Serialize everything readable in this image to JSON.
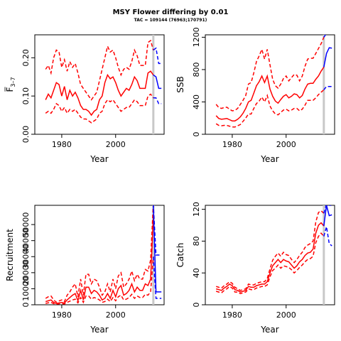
{
  "title": "MSY Flower differing by 0.01",
  "subtitle": "TAC = 109144 (76963;170791)",
  "colors": {
    "historic": "#ff0000",
    "forecast": "#0000ff",
    "divider": "#c8c8c8",
    "axis": "#000000"
  },
  "chart_data": [
    {
      "id": "fbar",
      "type": "line",
      "xlabel": "Year",
      "ylabel": "F̅",
      "ylabel_sub": "3–7",
      "xlim": [
        1970,
        2018
      ],
      "ylim": [
        0,
        0.26
      ],
      "xticks": [
        "1980",
        "2000"
      ],
      "xtick_values": [
        1980,
        2000
      ],
      "yticks": [
        "0.00",
        "0.10",
        "0.20"
      ],
      "ytick_values": [
        0,
        0.1,
        0.2
      ],
      "divider_x": 2014,
      "x": [
        1974,
        1975,
        1976,
        1977,
        1978,
        1979,
        1980,
        1981,
        1982,
        1983,
        1984,
        1985,
        1986,
        1987,
        1988,
        1989,
        1990,
        1991,
        1992,
        1993,
        1994,
        1995,
        1996,
        1997,
        1998,
        1999,
        2000,
        2001,
        2002,
        2003,
        2004,
        2005,
        2006,
        2007,
        2008,
        2009,
        2010,
        2011,
        2012,
        2013,
        2014
      ],
      "series": [
        {
          "role": "estimate",
          "style": "solid",
          "color": "#ff0000",
          "values": [
            0.09,
            0.105,
            0.095,
            0.115,
            0.135,
            0.13,
            0.1,
            0.125,
            0.09,
            0.115,
            0.1,
            0.11,
            0.095,
            0.075,
            0.065,
            0.065,
            0.06,
            0.05,
            0.06,
            0.065,
            0.09,
            0.1,
            0.135,
            0.155,
            0.145,
            0.15,
            0.135,
            0.115,
            0.1,
            0.11,
            0.12,
            0.115,
            0.13,
            0.15,
            0.14,
            0.12,
            0.12,
            0.12,
            0.16,
            0.165,
            0.155
          ]
        },
        {
          "role": "upper",
          "style": "dashed",
          "color": "#ff0000",
          "values": [
            0.17,
            0.18,
            0.16,
            0.2,
            0.22,
            0.215,
            0.175,
            0.195,
            0.165,
            0.19,
            0.175,
            0.185,
            0.16,
            0.13,
            0.12,
            0.11,
            0.1,
            0.09,
            0.1,
            0.11,
            0.14,
            0.17,
            0.2,
            0.23,
            0.215,
            0.22,
            0.2,
            0.175,
            0.155,
            0.17,
            0.175,
            0.17,
            0.19,
            0.22,
            0.205,
            0.18,
            0.18,
            0.18,
            0.24,
            0.245,
            0.22
          ]
        },
        {
          "role": "lower",
          "style": "dashed",
          "color": "#ff0000",
          "values": [
            0.055,
            0.06,
            0.055,
            0.065,
            0.08,
            0.075,
            0.06,
            0.07,
            0.055,
            0.065,
            0.06,
            0.065,
            0.055,
            0.045,
            0.04,
            0.04,
            0.035,
            0.03,
            0.035,
            0.04,
            0.055,
            0.06,
            0.08,
            0.09,
            0.085,
            0.09,
            0.08,
            0.07,
            0.06,
            0.065,
            0.07,
            0.07,
            0.08,
            0.09,
            0.085,
            0.075,
            0.075,
            0.075,
            0.1,
            0.105,
            0.095
          ]
        }
      ],
      "forecast": {
        "x": [
          2014,
          2015,
          2016,
          2017
        ],
        "estimate": [
          0.155,
          0.15,
          0.12,
          0.12
        ],
        "upper": [
          0.22,
          0.225,
          0.185,
          0.185
        ],
        "lower": [
          0.095,
          0.095,
          0.08,
          0.08
        ]
      }
    },
    {
      "id": "ssb",
      "type": "line",
      "xlabel": "Year",
      "ylabel": "SSB",
      "xlim": [
        1970,
        2018
      ],
      "ylim": [
        0,
        1230
      ],
      "xticks": [
        "1980",
        "2000"
      ],
      "xtick_values": [
        1980,
        2000
      ],
      "yticks": [
        "0",
        "400",
        "800",
        "1200"
      ],
      "ytick_values": [
        0,
        400,
        800,
        1200
      ],
      "divider_x": 2014,
      "x": [
        1974,
        1975,
        1976,
        1977,
        1978,
        1979,
        1980,
        1981,
        1982,
        1983,
        1984,
        1985,
        1986,
        1987,
        1988,
        1989,
        1990,
        1991,
        1992,
        1993,
        1994,
        1995,
        1996,
        1997,
        1998,
        1999,
        2000,
        2001,
        2002,
        2003,
        2004,
        2005,
        2006,
        2007,
        2008,
        2009,
        2010,
        2011,
        2012,
        2013,
        2014
      ],
      "series": [
        {
          "role": "estimate",
          "style": "solid",
          "color": "#ff0000",
          "values": [
            230,
            195,
            185,
            190,
            195,
            180,
            165,
            165,
            185,
            215,
            260,
            320,
            400,
            420,
            510,
            600,
            650,
            720,
            640,
            720,
            560,
            470,
            410,
            385,
            430,
            470,
            490,
            450,
            470,
            500,
            490,
            450,
            480,
            560,
            620,
            630,
            630,
            680,
            720,
            780,
            830
          ]
        },
        {
          "role": "upper",
          "style": "dashed",
          "color": "#ff0000",
          "values": [
            370,
            330,
            320,
            330,
            335,
            310,
            290,
            295,
            320,
            370,
            420,
            480,
            620,
            640,
            760,
            900,
            970,
            1050,
            930,
            1050,
            860,
            680,
            600,
            570,
            620,
            690,
            720,
            660,
            700,
            740,
            730,
            660,
            720,
            840,
            930,
            940,
            940,
            1000,
            1060,
            1120,
            1200
          ]
        },
        {
          "role": "lower",
          "style": "dashed",
          "color": "#ff0000",
          "values": [
            130,
            110,
            105,
            110,
            110,
            100,
            90,
            90,
            105,
            120,
            160,
            200,
            250,
            250,
            320,
            380,
            410,
            460,
            400,
            480,
            350,
            290,
            250,
            240,
            270,
            300,
            310,
            290,
            300,
            320,
            320,
            290,
            310,
            360,
            420,
            420,
            420,
            450,
            490,
            520,
            550
          ]
        }
      ],
      "forecast": {
        "x": [
          2014,
          2015,
          2016,
          2017
        ],
        "estimate": [
          830,
          1000,
          1070,
          1065
        ],
        "upper": [
          1200,
          1450,
          1520,
          1510
        ],
        "lower": [
          550,
          590,
          590,
          590
        ]
      }
    },
    {
      "id": "recruitment",
      "type": "line",
      "xlabel": "Year",
      "ylabel": "Recruitment",
      "xlim": [
        1970,
        2018
      ],
      "ylim": [
        0,
        62000
      ],
      "xticks": [
        "1980",
        "2000"
      ],
      "xtick_values": [
        1980,
        2000
      ],
      "yticks": [
        "0",
        "10000",
        "20000",
        "30000",
        "40000",
        "50000"
      ],
      "ytick_values": [
        0,
        10000,
        20000,
        30000,
        40000,
        50000
      ],
      "divider_x": 2014,
      "x": [
        1974,
        1975,
        1976,
        1977,
        1978,
        1979,
        1980,
        1981,
        1982,
        1983,
        1984,
        1985,
        1986,
        1987,
        1988,
        1989,
        1990,
        1991,
        1992,
        1993,
        1994,
        1995,
        1996,
        1997,
        1998,
        1999,
        2000,
        2001,
        2002,
        2003,
        2004,
        2005,
        2006,
        2007,
        2008,
        2009,
        2010,
        2011,
        2012,
        2013,
        2014
      ],
      "series": [
        {
          "role": "estimate",
          "style": "solid",
          "color": "#ff0000",
          "values": [
            2000,
            2500,
            3000,
            1500,
            800,
            1200,
            1500,
            1000,
            3000,
            4500,
            6000,
            7000,
            2500,
            9000,
            3000,
            11000,
            11000,
            7000,
            9000,
            8000,
            6000,
            3000,
            4000,
            7000,
            4000,
            9000,
            5000,
            10000,
            12000,
            6000,
            7000,
            9000,
            13000,
            8000,
            11000,
            9000,
            9000,
            13000,
            12000,
            16000,
            55000
          ]
        },
        {
          "role": "upper",
          "style": "dashed",
          "color": "#ff0000",
          "values": [
            4000,
            5000,
            5500,
            3000,
            1600,
            2400,
            3000,
            2000,
            6000,
            8000,
            11000,
            13000,
            5000,
            16000,
            6000,
            19000,
            19000,
            13000,
            16000,
            15000,
            11000,
            6000,
            8000,
            13000,
            8000,
            16000,
            10000,
            18000,
            20000,
            11000,
            13000,
            16000,
            21000,
            15000,
            19000,
            16000,
            16000,
            22000,
            21000,
            28000,
            64000
          ]
        },
        {
          "role": "lower",
          "style": "dashed",
          "color": "#ff0000",
          "values": [
            900,
            1200,
            1500,
            700,
            400,
            600,
            700,
            500,
            1500,
            2200,
            3000,
            3500,
            1200,
            4500,
            1500,
            5500,
            5500,
            3500,
            4500,
            4000,
            3000,
            1500,
            2000,
            3500,
            2000,
            4500,
            2500,
            5000,
            6000,
            3000,
            3500,
            4500,
            6500,
            4000,
            5500,
            4500,
            4500,
            6500,
            6000,
            8000,
            30000
          ]
        }
      ],
      "forecast": {
        "x": [
          2014,
          2015,
          2016,
          2017
        ],
        "estimate": [
          62000,
          8000,
          8000,
          8000
        ],
        "upper": [
          64000,
          31000,
          31000,
          31000
        ],
        "lower": [
          30000,
          4000,
          4000,
          4000
        ]
      }
    },
    {
      "id": "catch",
      "type": "line",
      "xlabel": "Year",
      "ylabel": "Catch",
      "xlim": [
        1970,
        2018
      ],
      "ylim": [
        0,
        125
      ],
      "xticks": [
        "1980",
        "2000"
      ],
      "xtick_values": [
        1980,
        2000
      ],
      "yticks": [
        "0",
        "40",
        "80",
        "120"
      ],
      "ytick_values": [
        0,
        40,
        80,
        120
      ],
      "divider_x": 2014,
      "x": [
        1974,
        1975,
        1976,
        1977,
        1978,
        1979,
        1980,
        1981,
        1982,
        1983,
        1984,
        1985,
        1986,
        1987,
        1988,
        1989,
        1990,
        1991,
        1992,
        1993,
        1994,
        1995,
        1996,
        1997,
        1998,
        1999,
        2000,
        2001,
        2002,
        2003,
        2004,
        2005,
        2006,
        2007,
        2008,
        2009,
        2010,
        2011,
        2012,
        2013,
        2014
      ],
      "series": [
        {
          "role": "estimate",
          "style": "solid",
          "color": "#ff0000",
          "values": [
            20,
            19,
            18,
            21,
            23,
            26,
            24,
            19,
            18,
            16,
            17,
            18,
            23,
            22,
            22,
            24,
            25,
            26,
            26,
            29,
            40,
            49,
            53,
            57,
            53,
            57,
            55,
            54,
            50,
            46,
            49,
            54,
            57,
            62,
            65,
            66,
            70,
            90,
            100,
            103,
            99
          ]
        },
        {
          "role": "upper",
          "style": "dashed",
          "color": "#ff0000",
          "values": [
            23,
            22,
            21,
            24,
            26,
            29,
            27,
            22,
            20,
            18,
            19,
            20,
            26,
            25,
            25,
            27,
            28,
            29,
            29,
            33,
            45,
            56,
            61,
            65,
            61,
            66,
            63,
            62,
            57,
            53,
            57,
            62,
            66,
            72,
            75,
            77,
            80,
            104,
            116,
            118,
            115
          ]
        },
        {
          "role": "lower",
          "style": "dashed",
          "color": "#ff0000",
          "values": [
            17,
            16,
            15,
            18,
            20,
            23,
            21,
            16,
            16,
            14,
            15,
            16,
            20,
            19,
            19,
            21,
            22,
            23,
            23,
            25,
            35,
            43,
            46,
            50,
            46,
            49,
            48,
            47,
            44,
            40,
            43,
            47,
            50,
            54,
            57,
            58,
            61,
            78,
            86,
            90,
            86
          ]
        }
      ],
      "forecast": {
        "x": [
          2014,
          2015,
          2016,
          2017
        ],
        "estimate": [
          99,
          125,
          112,
          113
        ],
        "upper": [
          115,
          128,
          125,
          125
        ],
        "lower": [
          86,
          98,
          77,
          74
        ]
      }
    }
  ]
}
